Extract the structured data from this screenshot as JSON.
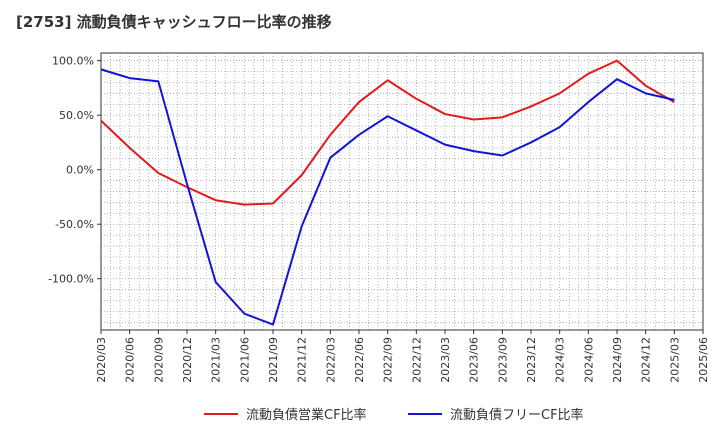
{
  "chart_data": {
    "type": "line",
    "title": "[2753]  流動負債キャッシュフロー比率の推移",
    "xlabel": "",
    "ylabel": "",
    "x": [
      "2020/03",
      "2020/06",
      "2020/09",
      "2020/12",
      "2021/03",
      "2021/06",
      "2021/09",
      "2021/12",
      "2022/03",
      "2022/06",
      "2022/09",
      "2022/12",
      "2023/03",
      "2023/06",
      "2023/09",
      "2023/12",
      "2024/03",
      "2024/06",
      "2024/09",
      "2024/12",
      "2025/03",
      "2025/06"
    ],
    "ylim": [
      -147,
      107
    ],
    "yticks": [
      100,
      50,
      0,
      -50,
      -100
    ],
    "ytick_labels": [
      "100.0%",
      "50.0%",
      "0.0%",
      "-50.0%",
      "-100.0%"
    ],
    "grid": true,
    "legend_position": "bottom",
    "series": [
      {
        "name": "流動負債営業CF比率",
        "color": "#e31a1c",
        "values": [
          45,
          20,
          -3,
          -16,
          -28,
          -32,
          -31,
          -5,
          32,
          62,
          82,
          65,
          51,
          46,
          48,
          58,
          70,
          88,
          100,
          77,
          62,
          null
        ]
      },
      {
        "name": "流動負債フリーCF比率",
        "color": "#1414d4",
        "values": [
          92,
          84,
          81,
          -13,
          -103,
          -132,
          -142,
          -52,
          11,
          32,
          49,
          36,
          23,
          17,
          13,
          25,
          39,
          62,
          83,
          70,
          64,
          null
        ]
      }
    ]
  }
}
